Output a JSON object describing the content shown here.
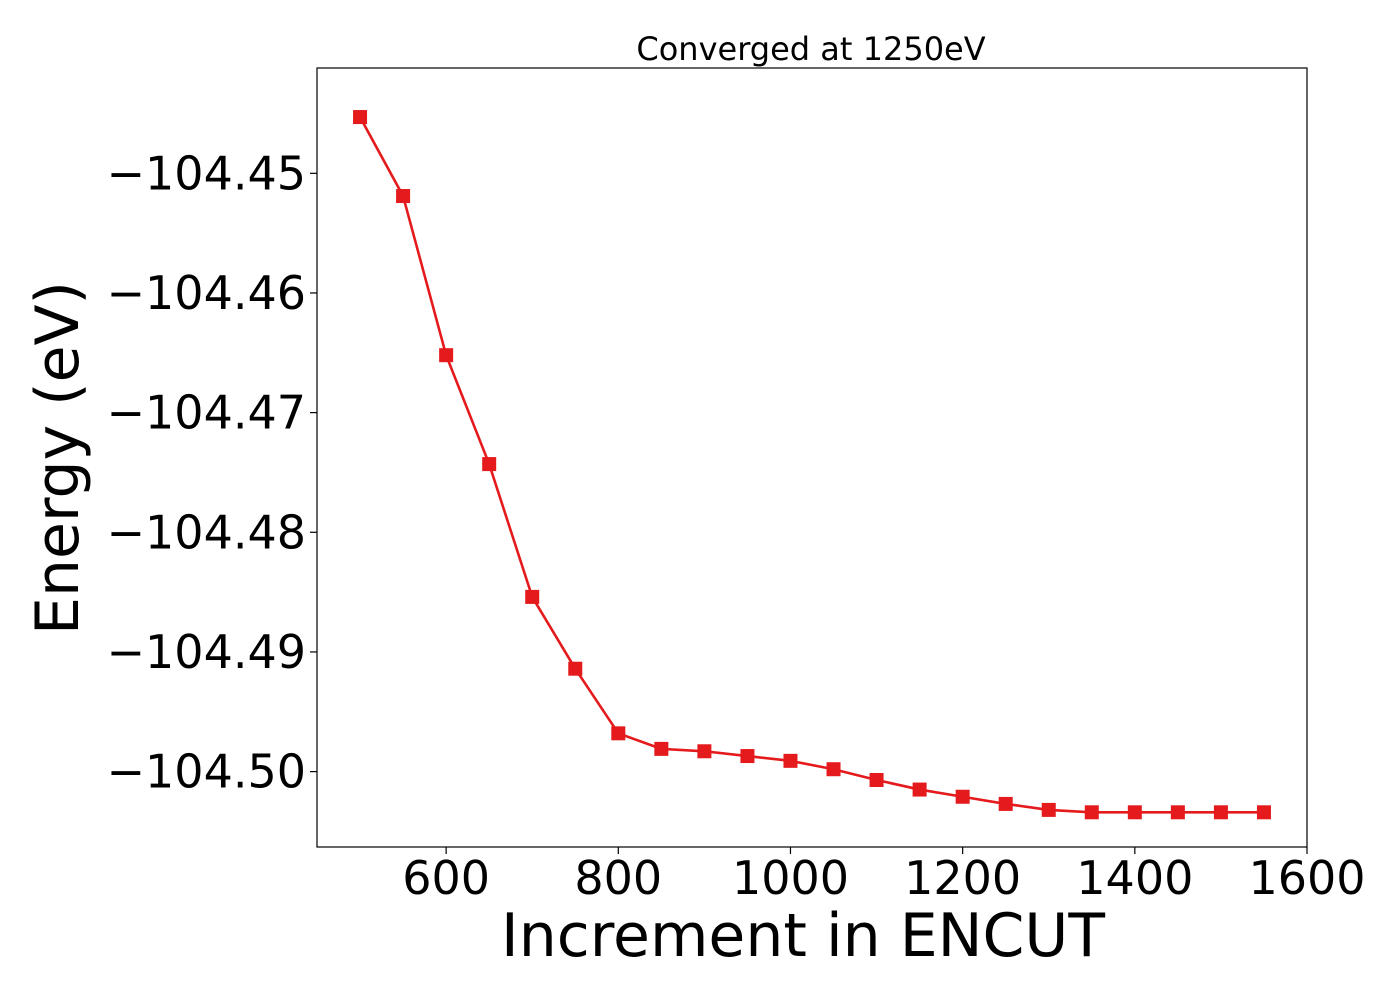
{
  "chart_data": {
    "type": "line",
    "title": "Converged at 1250eV",
    "xlabel": "Increment in ENCUT",
    "ylabel": "Energy (eV)",
    "xlim": [
      450,
      1600
    ],
    "ylim": [
      -104.5063,
      -104.4412
    ],
    "grid": false,
    "x_ticks": [
      600,
      800,
      1000,
      1200,
      1400,
      1600
    ],
    "x_tick_labels": [
      "600",
      "800",
      "1000",
      "1200",
      "1400",
      "1600"
    ],
    "y_ticks": [
      -104.45,
      -104.46,
      -104.47,
      -104.48,
      -104.49,
      -104.5
    ],
    "y_tick_labels": [
      "−104.45",
      "−104.46",
      "−104.47",
      "−104.48",
      "−104.49",
      "−104.50"
    ],
    "series": [
      {
        "color": "#e41a1c",
        "marker": "square",
        "x": [
          500,
          550,
          600,
          650,
          700,
          750,
          800,
          850,
          900,
          950,
          1000,
          1050,
          1100,
          1150,
          1200,
          1250,
          1300,
          1350,
          1400,
          1450,
          1500,
          1550
        ],
        "y": [
          -104.4453,
          -104.4519,
          -104.4652,
          -104.4743,
          -104.4854,
          -104.4914,
          -104.4968,
          -104.4981,
          -104.4983,
          -104.4987,
          -104.4991,
          -104.4998,
          -104.5007,
          -104.5015,
          -104.5021,
          -104.5027,
          -104.5032,
          -104.5034,
          -104.5034,
          -104.5034,
          -104.5034,
          -104.5034
        ]
      }
    ]
  }
}
